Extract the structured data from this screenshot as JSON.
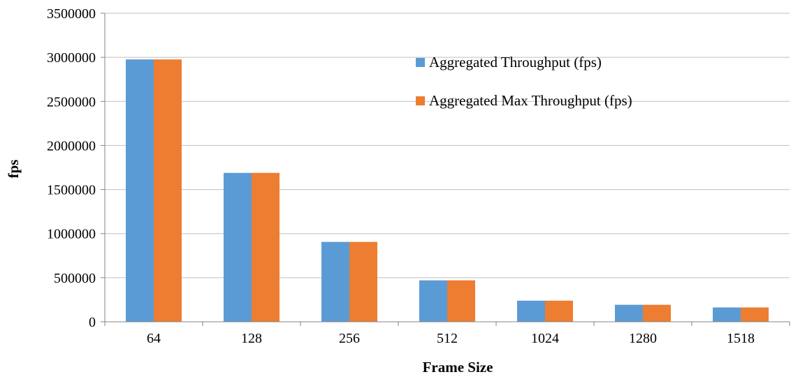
{
  "chart_data": {
    "type": "bar",
    "categories": [
      "64",
      "128",
      "256",
      "512",
      "1024",
      "1280",
      "1518"
    ],
    "series": [
      {
        "name": "Aggregated Throughput (fps)",
        "color": "#5B9BD5",
        "values": [
          2976190,
          1689189,
          905797,
          469925,
          239464,
          192678,
          162549
        ]
      },
      {
        "name": "Aggregated Max Throughput (fps)",
        "color": "#ED7D31",
        "values": [
          2976190,
          1689189,
          905797,
          469925,
          239464,
          192678,
          162549
        ]
      }
    ],
    "xlabel": "Frame Size",
    "ylabel": "fps",
    "ylim": [
      0,
      3500000
    ],
    "yticks": [
      "0",
      "500000",
      "1000000",
      "1500000",
      "2000000",
      "2500000",
      "3000000",
      "3500000"
    ],
    "grid": true,
    "legend_position": "top-right (inside plot)"
  }
}
